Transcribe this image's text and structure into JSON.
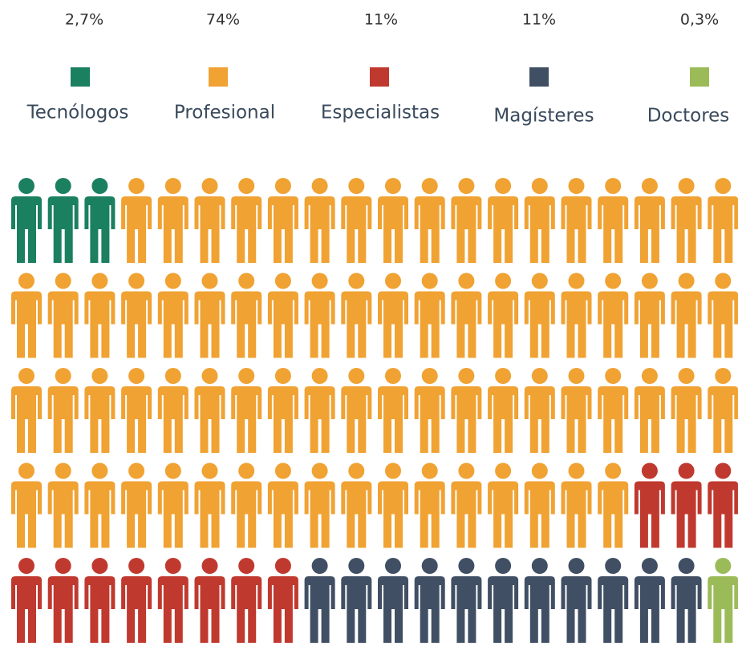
{
  "chart_data": {
    "type": "pictogram",
    "categories": [
      "Tecnólogos",
      "Profesional",
      "Especialistas",
      "Magísteres",
      "Doctores"
    ],
    "values": [
      2.7,
      74,
      11,
      11,
      0.3
    ],
    "value_labels": [
      "2,7%",
      "74%",
      "11%",
      "11%",
      "0,3%"
    ],
    "colors": [
      "#1b8060",
      "#f0a233",
      "#c0392f",
      "#404f64",
      "#9bbb59"
    ],
    "icon_counts": [
      3,
      74,
      11,
      11,
      1
    ]
  }
}
